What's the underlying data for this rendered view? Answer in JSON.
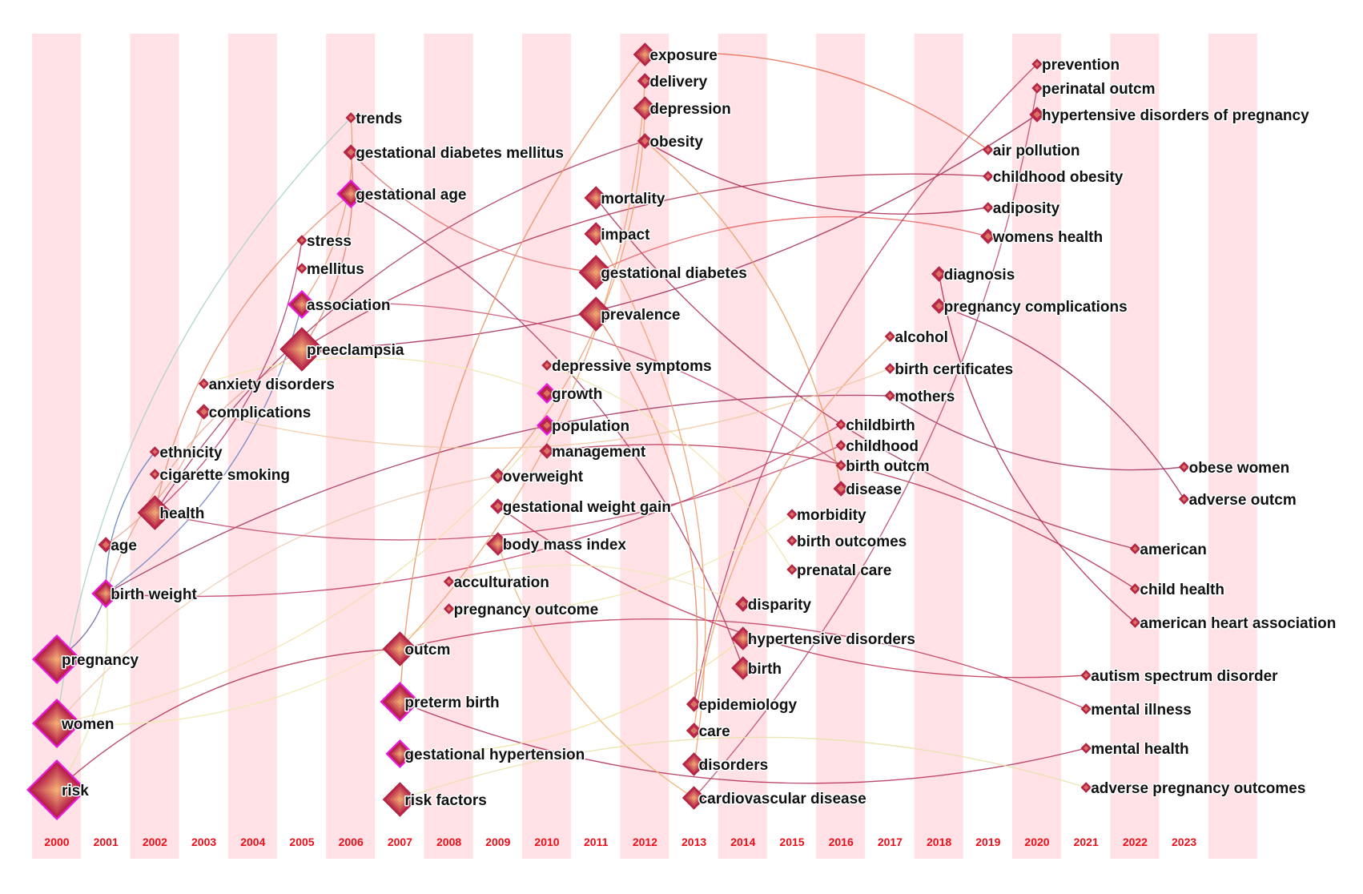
{
  "title": "",
  "stripe_color": "#ffe1e6",
  "node_fill": "#d54a5e",
  "node_stroke": "#b0203c",
  "cited_color": "#e81ad9",
  "year_label_color": "#e8101a",
  "years": [
    "2000",
    "2001",
    "2002",
    "2003",
    "2004",
    "2005",
    "2006",
    "2007",
    "2008",
    "2009",
    "2010",
    "2011",
    "2012",
    "2013",
    "2014",
    "2015",
    "2016",
    "2017",
    "2018",
    "2019",
    "2020",
    "2021",
    "2022",
    "2023"
  ],
  "keywords": [
    {
      "label": "risk",
      "year": 2000,
      "size": 5,
      "cited": true
    },
    {
      "label": "women",
      "year": 2000,
      "size": 4,
      "cited": true
    },
    {
      "label": "pregnancy",
      "year": 2000,
      "size": 4,
      "cited": true
    },
    {
      "label": "birth weight",
      "year": 2001,
      "size": 2,
      "cited": true
    },
    {
      "label": "age",
      "year": 2001,
      "size": 1,
      "cited": false
    },
    {
      "label": "health",
      "year": 2002,
      "size": 3,
      "cited": false
    },
    {
      "label": "cigarette smoking",
      "year": 2002,
      "size": 0,
      "cited": false
    },
    {
      "label": "ethnicity",
      "year": 2002,
      "size": 0,
      "cited": false
    },
    {
      "label": "complications",
      "year": 2003,
      "size": 1,
      "cited": false
    },
    {
      "label": "anxiety disorders",
      "year": 2003,
      "size": 0,
      "cited": false
    },
    {
      "label": "preeclampsia",
      "year": 2005,
      "size": 4,
      "cited": false
    },
    {
      "label": "association",
      "year": 2005,
      "size": 2,
      "cited": true
    },
    {
      "label": "mellitus",
      "year": 2005,
      "size": 0,
      "cited": false
    },
    {
      "label": "stress",
      "year": 2005,
      "size": 0,
      "cited": false
    },
    {
      "label": "gestational age",
      "year": 2006,
      "size": 2,
      "cited": true
    },
    {
      "label": "gestational diabetes mellitus",
      "year": 2006,
      "size": 1,
      "cited": false
    },
    {
      "label": "trends",
      "year": 2006,
      "size": 0,
      "cited": false
    },
    {
      "label": "risk factors",
      "year": 2007,
      "size": 3,
      "cited": false
    },
    {
      "label": "gestational hypertension",
      "year": 2007,
      "size": 2,
      "cited": true
    },
    {
      "label": "preterm birth",
      "year": 2007,
      "size": 3,
      "cited": true
    },
    {
      "label": "outcm",
      "year": 2007,
      "size": 3,
      "cited": false
    },
    {
      "label": "pregnancy outcome",
      "year": 2008,
      "size": 0,
      "cited": false
    },
    {
      "label": "acculturation",
      "year": 2008,
      "size": 0,
      "cited": false
    },
    {
      "label": "body mass index",
      "year": 2009,
      "size": 2,
      "cited": false
    },
    {
      "label": "gestational weight gain",
      "year": 2009,
      "size": 1,
      "cited": false
    },
    {
      "label": "overweight",
      "year": 2009,
      "size": 1,
      "cited": false
    },
    {
      "label": "management",
      "year": 2010,
      "size": 1,
      "cited": false
    },
    {
      "label": "population",
      "year": 2010,
      "size": 1,
      "cited": true
    },
    {
      "label": "growth",
      "year": 2010,
      "size": 1,
      "cited": true
    },
    {
      "label": "depressive symptoms",
      "year": 2010,
      "size": 0,
      "cited": false
    },
    {
      "label": "prevalence",
      "year": 2011,
      "size": 3,
      "cited": false
    },
    {
      "label": "gestational diabetes",
      "year": 2011,
      "size": 3,
      "cited": false
    },
    {
      "label": "impact",
      "year": 2011,
      "size": 2,
      "cited": false
    },
    {
      "label": "mortality",
      "year": 2011,
      "size": 2,
      "cited": false
    },
    {
      "label": "obesity",
      "year": 2012,
      "size": 1,
      "cited": false
    },
    {
      "label": "depression",
      "year": 2012,
      "size": 2,
      "cited": false
    },
    {
      "label": "delivery",
      "year": 2012,
      "size": 1,
      "cited": false
    },
    {
      "label": "exposure",
      "year": 2012,
      "size": 2,
      "cited": false
    },
    {
      "label": "cardiovascular disease",
      "year": 2013,
      "size": 2,
      "cited": false
    },
    {
      "label": "disorders",
      "year": 2013,
      "size": 2,
      "cited": false
    },
    {
      "label": "care",
      "year": 2013,
      "size": 1,
      "cited": false
    },
    {
      "label": "epidemiology",
      "year": 2013,
      "size": 1,
      "cited": false
    },
    {
      "label": "birth",
      "year": 2014,
      "size": 2,
      "cited": false
    },
    {
      "label": "hypertensive disorders",
      "year": 2014,
      "size": 2,
      "cited": false
    },
    {
      "label": "disparity",
      "year": 2014,
      "size": 1,
      "cited": false
    },
    {
      "label": "prenatal care",
      "year": 2015,
      "size": 0,
      "cited": false
    },
    {
      "label": "birth outcomes",
      "year": 2015,
      "size": 0,
      "cited": false
    },
    {
      "label": "morbidity",
      "year": 2015,
      "size": 0,
      "cited": false
    },
    {
      "label": "disease",
      "year": 2016,
      "size": 1,
      "cited": false
    },
    {
      "label": "birth outcm",
      "year": 2016,
      "size": 0,
      "cited": false
    },
    {
      "label": "childhood",
      "year": 2016,
      "size": 0,
      "cited": false
    },
    {
      "label": "childbirth",
      "year": 2016,
      "size": 0,
      "cited": false
    },
    {
      "label": "mothers",
      "year": 2017,
      "size": 0,
      "cited": false
    },
    {
      "label": "birth certificates",
      "year": 2017,
      "size": 0,
      "cited": false
    },
    {
      "label": "alcohol",
      "year": 2017,
      "size": 0,
      "cited": false
    },
    {
      "label": "pregnancy complications",
      "year": 2018,
      "size": 1,
      "cited": false
    },
    {
      "label": "diagnosis",
      "year": 2018,
      "size": 1,
      "cited": false
    },
    {
      "label": "womens health",
      "year": 2019,
      "size": 1,
      "cited": false
    },
    {
      "label": "adiposity",
      "year": 2019,
      "size": 0,
      "cited": false
    },
    {
      "label": "childhood obesity",
      "year": 2019,
      "size": 0,
      "cited": false
    },
    {
      "label": "air pollution",
      "year": 2019,
      "size": 0,
      "cited": false
    },
    {
      "label": "hypertensive disorders of pregnancy",
      "year": 2020,
      "size": 1,
      "cited": false
    },
    {
      "label": "perinatal outcm",
      "year": 2020,
      "size": 0,
      "cited": false
    },
    {
      "label": "prevention",
      "year": 2020,
      "size": 0,
      "cited": false
    },
    {
      "label": "adverse pregnancy outcomes",
      "year": 2021,
      "size": 0,
      "cited": false
    },
    {
      "label": "mental health",
      "year": 2021,
      "size": 0,
      "cited": false
    },
    {
      "label": "mental illness",
      "year": 2021,
      "size": 0,
      "cited": false
    },
    {
      "label": "autism spectrum disorder",
      "year": 2021,
      "size": 0,
      "cited": false
    },
    {
      "label": "american heart association",
      "year": 2022,
      "size": 0,
      "cited": false
    },
    {
      "label": "child health",
      "year": 2022,
      "size": 0,
      "cited": false
    },
    {
      "label": "american",
      "year": 2022,
      "size": 0,
      "cited": false
    },
    {
      "label": "adverse outcm",
      "year": 2023,
      "size": 0,
      "cited": false
    },
    {
      "label": "obese women",
      "year": 2023,
      "size": 0,
      "cited": false
    }
  ],
  "links": [
    {
      "from": "risk",
      "to": "outcm",
      "color": "#b03050"
    },
    {
      "from": "risk",
      "to": "birth weight",
      "color": "#e8e4b0"
    },
    {
      "from": "women",
      "to": "trends",
      "color": "#a8d0c8"
    },
    {
      "from": "women",
      "to": "pregnancy outcome",
      "color": "#eeeab0"
    },
    {
      "from": "women",
      "to": "overweight",
      "color": "#f0c8b0"
    },
    {
      "from": "pregnancy",
      "to": "birth weight",
      "color": "#7060a0"
    },
    {
      "from": "birth weight",
      "to": "mothers",
      "color": "#a03060"
    },
    {
      "from": "birth weight",
      "to": "association",
      "color": "#7080c0"
    },
    {
      "from": "birth weight",
      "to": "ethnicity",
      "color": "#6080c0"
    },
    {
      "from": "birth weight",
      "to": "childbirth",
      "color": "#c03a60"
    },
    {
      "from": "birth weight",
      "to": "preeclampsia",
      "color": "#e8a890"
    },
    {
      "from": "age",
      "to": "complications",
      "color": "#e8a890"
    },
    {
      "from": "health",
      "to": "obesity",
      "color": "#a83860"
    },
    {
      "from": "health",
      "to": "childhood",
      "color": "#c04868"
    },
    {
      "from": "health",
      "to": "gestational age",
      "color": "#e89070"
    },
    {
      "from": "preeclampsia",
      "to": "hypertensive disorders of pregnancy",
      "color": "#a02858"
    },
    {
      "from": "preeclampsia",
      "to": "childhood obesity",
      "color": "#b03050"
    },
    {
      "from": "preeclampsia",
      "to": "gestational diabetes mellitus",
      "color": "#e88070"
    },
    {
      "from": "association",
      "to": "birth outcm",
      "color": "#c85070"
    },
    {
      "from": "association",
      "to": "trends",
      "color": "#e8a070"
    },
    {
      "from": "gestational age",
      "to": "birth",
      "color": "#b03860"
    },
    {
      "from": "gestational diabetes mellitus",
      "to": "gestational diabetes",
      "color": "#e07070"
    },
    {
      "from": "outcm",
      "to": "mental illness",
      "color": "#c03a5a"
    },
    {
      "from": "preterm birth",
      "to": "mental health",
      "color": "#b02a50"
    },
    {
      "from": "preterm birth",
      "to": "exposure",
      "color": "#e89060"
    },
    {
      "from": "outcm",
      "to": "delivery",
      "color": "#f0a070"
    },
    {
      "from": "exposure",
      "to": "air pollution",
      "color": "#e86a50"
    },
    {
      "from": "obesity",
      "to": "adiposity",
      "color": "#a82850"
    },
    {
      "from": "obesity",
      "to": "disease",
      "color": "#e8a060"
    },
    {
      "from": "mortality",
      "to": "american",
      "color": "#b03050"
    },
    {
      "from": "gestational diabetes",
      "to": "womens health",
      "color": "#e86060"
    },
    {
      "from": "diagnosis",
      "to": "american heart association",
      "color": "#b02850"
    },
    {
      "from": "pregnancy complications",
      "to": "adverse outcm",
      "color": "#a82858"
    },
    {
      "from": "mothers",
      "to": "obese women",
      "color": "#a03060"
    },
    {
      "from": "management",
      "to": "child health",
      "color": "#b83050"
    },
    {
      "from": "gestational weight gain",
      "to": "autism spectrum disorder",
      "color": "#c03050"
    },
    {
      "from": "epidemiology",
      "to": "prevention",
      "color": "#c04060"
    },
    {
      "from": "cardiovascular disease",
      "to": "perinatal outcm",
      "color": "#c04868"
    },
    {
      "from": "care",
      "to": "alcohol",
      "color": "#f0a070"
    },
    {
      "from": "overweight",
      "to": "depression",
      "color": "#f0a070"
    },
    {
      "from": "prevalence",
      "to": "epidemiology",
      "color": "#e88060"
    },
    {
      "from": "body mass index",
      "to": "cardiovascular disease",
      "color": "#f0b070"
    },
    {
      "from": "risk factors",
      "to": "adverse pregnancy outcomes",
      "color": "#e8e0a8"
    },
    {
      "from": "gestational hypertension",
      "to": "hypertensive disorders",
      "color": "#f0e0a0"
    },
    {
      "from": "depressive symptoms",
      "to": "prenatal care",
      "color": "#eee4a8"
    },
    {
      "from": "pregnancy outcome",
      "to": "morbidity",
      "color": "#f0e8b0"
    },
    {
      "from": "acculturation",
      "to": "disparity",
      "color": "#f0e8b8"
    },
    {
      "from": "complications",
      "to": "birth certificates",
      "color": "#f0c8a0"
    },
    {
      "from": "anxiety disorders",
      "to": "growth",
      "color": "#eee8b0"
    },
    {
      "from": "health",
      "to": "stress",
      "color": "#b83a70"
    },
    {
      "from": "impact",
      "to": "disorders",
      "color": "#f0a070"
    },
    {
      "from": "women",
      "to": "population",
      "color": "#f0e0a8"
    }
  ]
}
